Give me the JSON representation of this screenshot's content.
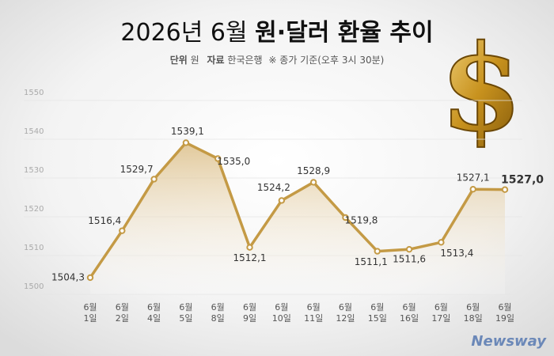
{
  "chart_data": {
    "type": "line",
    "title_parts": [
      "2026년 6월",
      "원·달러 환율 추이"
    ],
    "subtitle_parts": [
      "단위",
      "원",
      "자료",
      "한국은행",
      "※ 종가 기준(오후 3시 30분)"
    ],
    "icon": "$",
    "brand": "Newsway",
    "categories": [
      [
        "6월",
        "1일"
      ],
      [
        "6월",
        "2일"
      ],
      [
        "6월",
        "4일"
      ],
      [
        "6월",
        "5일"
      ],
      [
        "6월",
        "8일"
      ],
      [
        "6월",
        "9일"
      ],
      [
        "6월",
        "10일"
      ],
      [
        "6월",
        "11일"
      ],
      [
        "6월",
        "12일"
      ],
      [
        "6월",
        "15일"
      ],
      [
        "6월",
        "16일"
      ],
      [
        "6월",
        "17일"
      ],
      [
        "6월",
        "18일"
      ],
      [
        "6월",
        "19일"
      ]
    ],
    "values": [
      1504.3,
      1516.4,
      1529.7,
      1539.1,
      1535.0,
      1512.1,
      1524.2,
      1528.9,
      1519.8,
      1511.1,
      1511.6,
      1513.4,
      1527.1,
      1527.0
    ],
    "value_labels": [
      "1504,3",
      "1516,4",
      "1529,7",
      "1539,1",
      "1535,0",
      "1512,1",
      "1524,2",
      "1528,9",
      "1519,8",
      "1511,1",
      "1511,6",
      "1513,4",
      "1527,1",
      "1527,0"
    ],
    "color": "#c49a45",
    "ylim": [
      1500,
      1550
    ],
    "yticks": [
      1500,
      1510,
      1520,
      1530,
      1540,
      1550
    ]
  }
}
